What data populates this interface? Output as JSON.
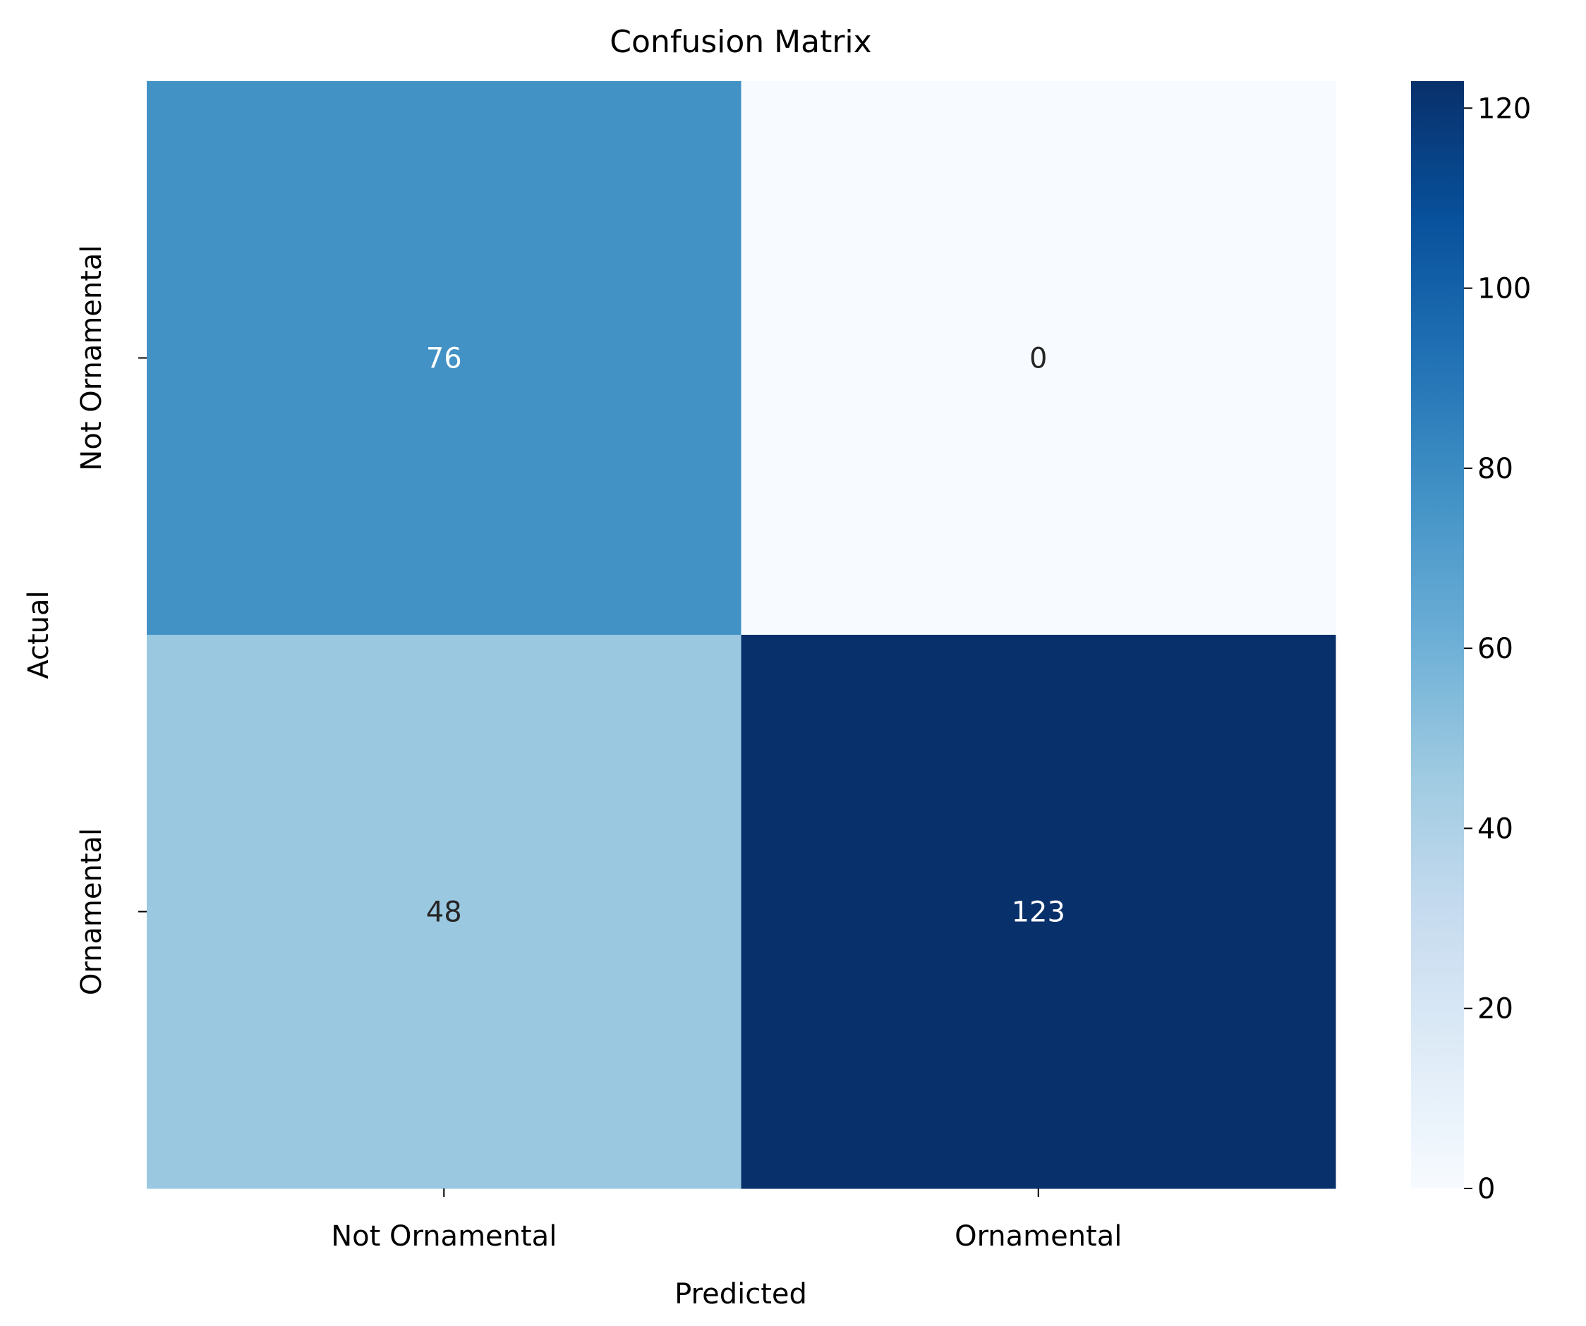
{
  "chart_data": {
    "type": "heatmap",
    "title": "Confusion Matrix",
    "xlabel": "Predicted",
    "ylabel": "Actual",
    "x_categories": [
      "Not Ornamental",
      "Ornamental"
    ],
    "y_categories": [
      "Not Ornamental",
      "Ornamental"
    ],
    "values": [
      [
        76,
        0
      ],
      [
        48,
        123
      ]
    ],
    "colormap": "Blues",
    "colorbar": {
      "min": 0,
      "max": 123,
      "ticks": [
        0,
        20,
        40,
        60,
        80,
        100,
        120
      ]
    },
    "colors": {
      "76": "#4292c6",
      "0": "#f7fbff",
      "48": "#9ac8e0",
      "123": "#08306b"
    }
  }
}
